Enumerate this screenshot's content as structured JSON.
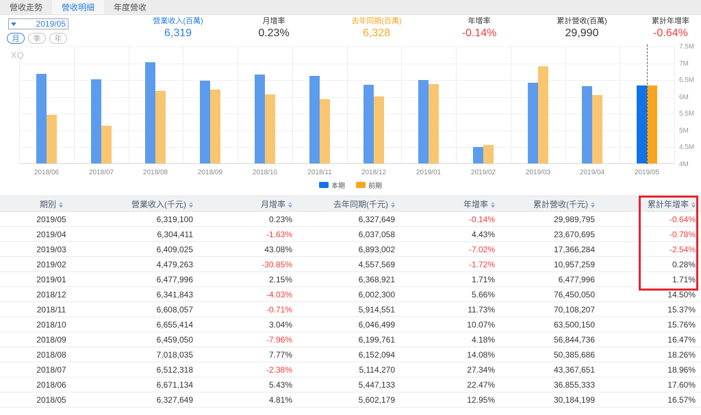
{
  "tabs": [
    {
      "label": "營收走勢",
      "active": false
    },
    {
      "label": "營收明細",
      "active": true
    },
    {
      "label": "年度營收",
      "active": false
    }
  ],
  "controls": {
    "period_value": "2019/05",
    "period_buttons": [
      {
        "label": "月",
        "active": true
      },
      {
        "label": "季",
        "active": false
      },
      {
        "label": "年",
        "active": false
      }
    ]
  },
  "metrics": [
    {
      "label": "營業收入(百萬)",
      "value": "6,319",
      "color": "blue"
    },
    {
      "label": "月增率",
      "value": "0.23%",
      "color": "dark"
    },
    {
      "label": "去年同期(百萬)",
      "value": "6,328",
      "color": "orange"
    },
    {
      "label": "年增率",
      "value": "-0.14%",
      "color": "red"
    },
    {
      "label": "累計營收(百萬)",
      "value": "29,990",
      "color": "dark"
    },
    {
      "label": "累計年增率",
      "value": "-0.64%",
      "color": "red"
    }
  ],
  "watermark": "XQ",
  "chart_data": {
    "type": "bar",
    "categories": [
      "2018/06",
      "2018/07",
      "2018/08",
      "2018/09",
      "2018/10",
      "2018/11",
      "2018/12",
      "2019/01",
      "2019/02",
      "2019/03",
      "2019/04",
      "2019/05"
    ],
    "series": [
      {
        "name": "本期",
        "values": [
          6671134,
          6512318,
          7018035,
          6459050,
          6655414,
          6608057,
          6341843,
          6477996,
          4479263,
          6409025,
          6304411,
          6319100
        ]
      },
      {
        "name": "前期",
        "values": [
          5447133,
          5114270,
          6152094,
          6199761,
          6046499,
          5914551,
          6002300,
          6368921,
          4557569,
          6893002,
          6037058,
          6327649
        ]
      }
    ],
    "unit": "千元",
    "ylim": [
      4000000,
      7500000
    ],
    "y_ticks": [
      "7.5M",
      "7M",
      "6.5M",
      "6M",
      "5.5M",
      "5M",
      "4.5M",
      "4M"
    ],
    "legend": [
      "本期",
      "前期"
    ],
    "legend_position": "bottom-center",
    "grid": true,
    "highlight_index": 11
  },
  "colors": {
    "accent_blue": "#2b7ddb",
    "bar_blue": "#5d9cec",
    "bar_orange": "#f8c671",
    "bar_blue_active": "#1273e6",
    "bar_orange_active": "#f7a51f",
    "negative_red": "#f23c3c",
    "highlight_box": "#e5242b"
  },
  "table": {
    "headers": [
      "期別",
      "營業收入(千元)",
      "月增率",
      "去年同期(千元)",
      "年增率",
      "累計營收(千元)",
      "累計年增率"
    ],
    "rows": [
      [
        "2019/05",
        "6,319,100",
        "0.23%",
        "6,327,649",
        "-0.14%",
        "29,989,795",
        "-0.64%"
      ],
      [
        "2019/04",
        "6,304,411",
        "-1.63%",
        "6,037,058",
        "4.43%",
        "23,670,695",
        "-0.78%"
      ],
      [
        "2019/03",
        "6,409,025",
        "43.08%",
        "6,893,002",
        "-7.02%",
        "17,366,284",
        "-2.54%"
      ],
      [
        "2019/02",
        "4,479,263",
        "-30.85%",
        "4,557,569",
        "-1.72%",
        "10,957,259",
        "0.28%"
      ],
      [
        "2019/01",
        "6,477,996",
        "2.15%",
        "6,368,921",
        "1.71%",
        "6,477,996",
        "1.71%"
      ],
      [
        "2018/12",
        "6,341,843",
        "-4.03%",
        "6,002,300",
        "5.66%",
        "76,450,050",
        "14.50%"
      ],
      [
        "2018/11",
        "6,608,057",
        "-0.71%",
        "5,914,551",
        "11.73%",
        "70,108,207",
        "15.37%"
      ],
      [
        "2018/10",
        "6,655,414",
        "3.04%",
        "6,046,499",
        "10.07%",
        "63,500,150",
        "15.76%"
      ],
      [
        "2018/09",
        "6,459,050",
        "-7.96%",
        "6,199,761",
        "4.18%",
        "56,844,736",
        "16.47%"
      ],
      [
        "2018/08",
        "7,018,035",
        "7.77%",
        "6,152,094",
        "14.08%",
        "50,385,686",
        "18.26%"
      ],
      [
        "2018/07",
        "6,512,318",
        "-2.38%",
        "5,114,270",
        "27.34%",
        "43,367,651",
        "18.96%"
      ],
      [
        "2018/06",
        "6,671,134",
        "5.43%",
        "5,447,133",
        "22.47%",
        "36,855,333",
        "17.60%"
      ],
      [
        "2018/05",
        "6,327,649",
        "4.81%",
        "5,602,179",
        "12.95%",
        "30,184,199",
        "16.57%"
      ]
    ],
    "highlight": {
      "column": "累計年增率",
      "rows_covered": 5,
      "includes_header": true
    }
  }
}
